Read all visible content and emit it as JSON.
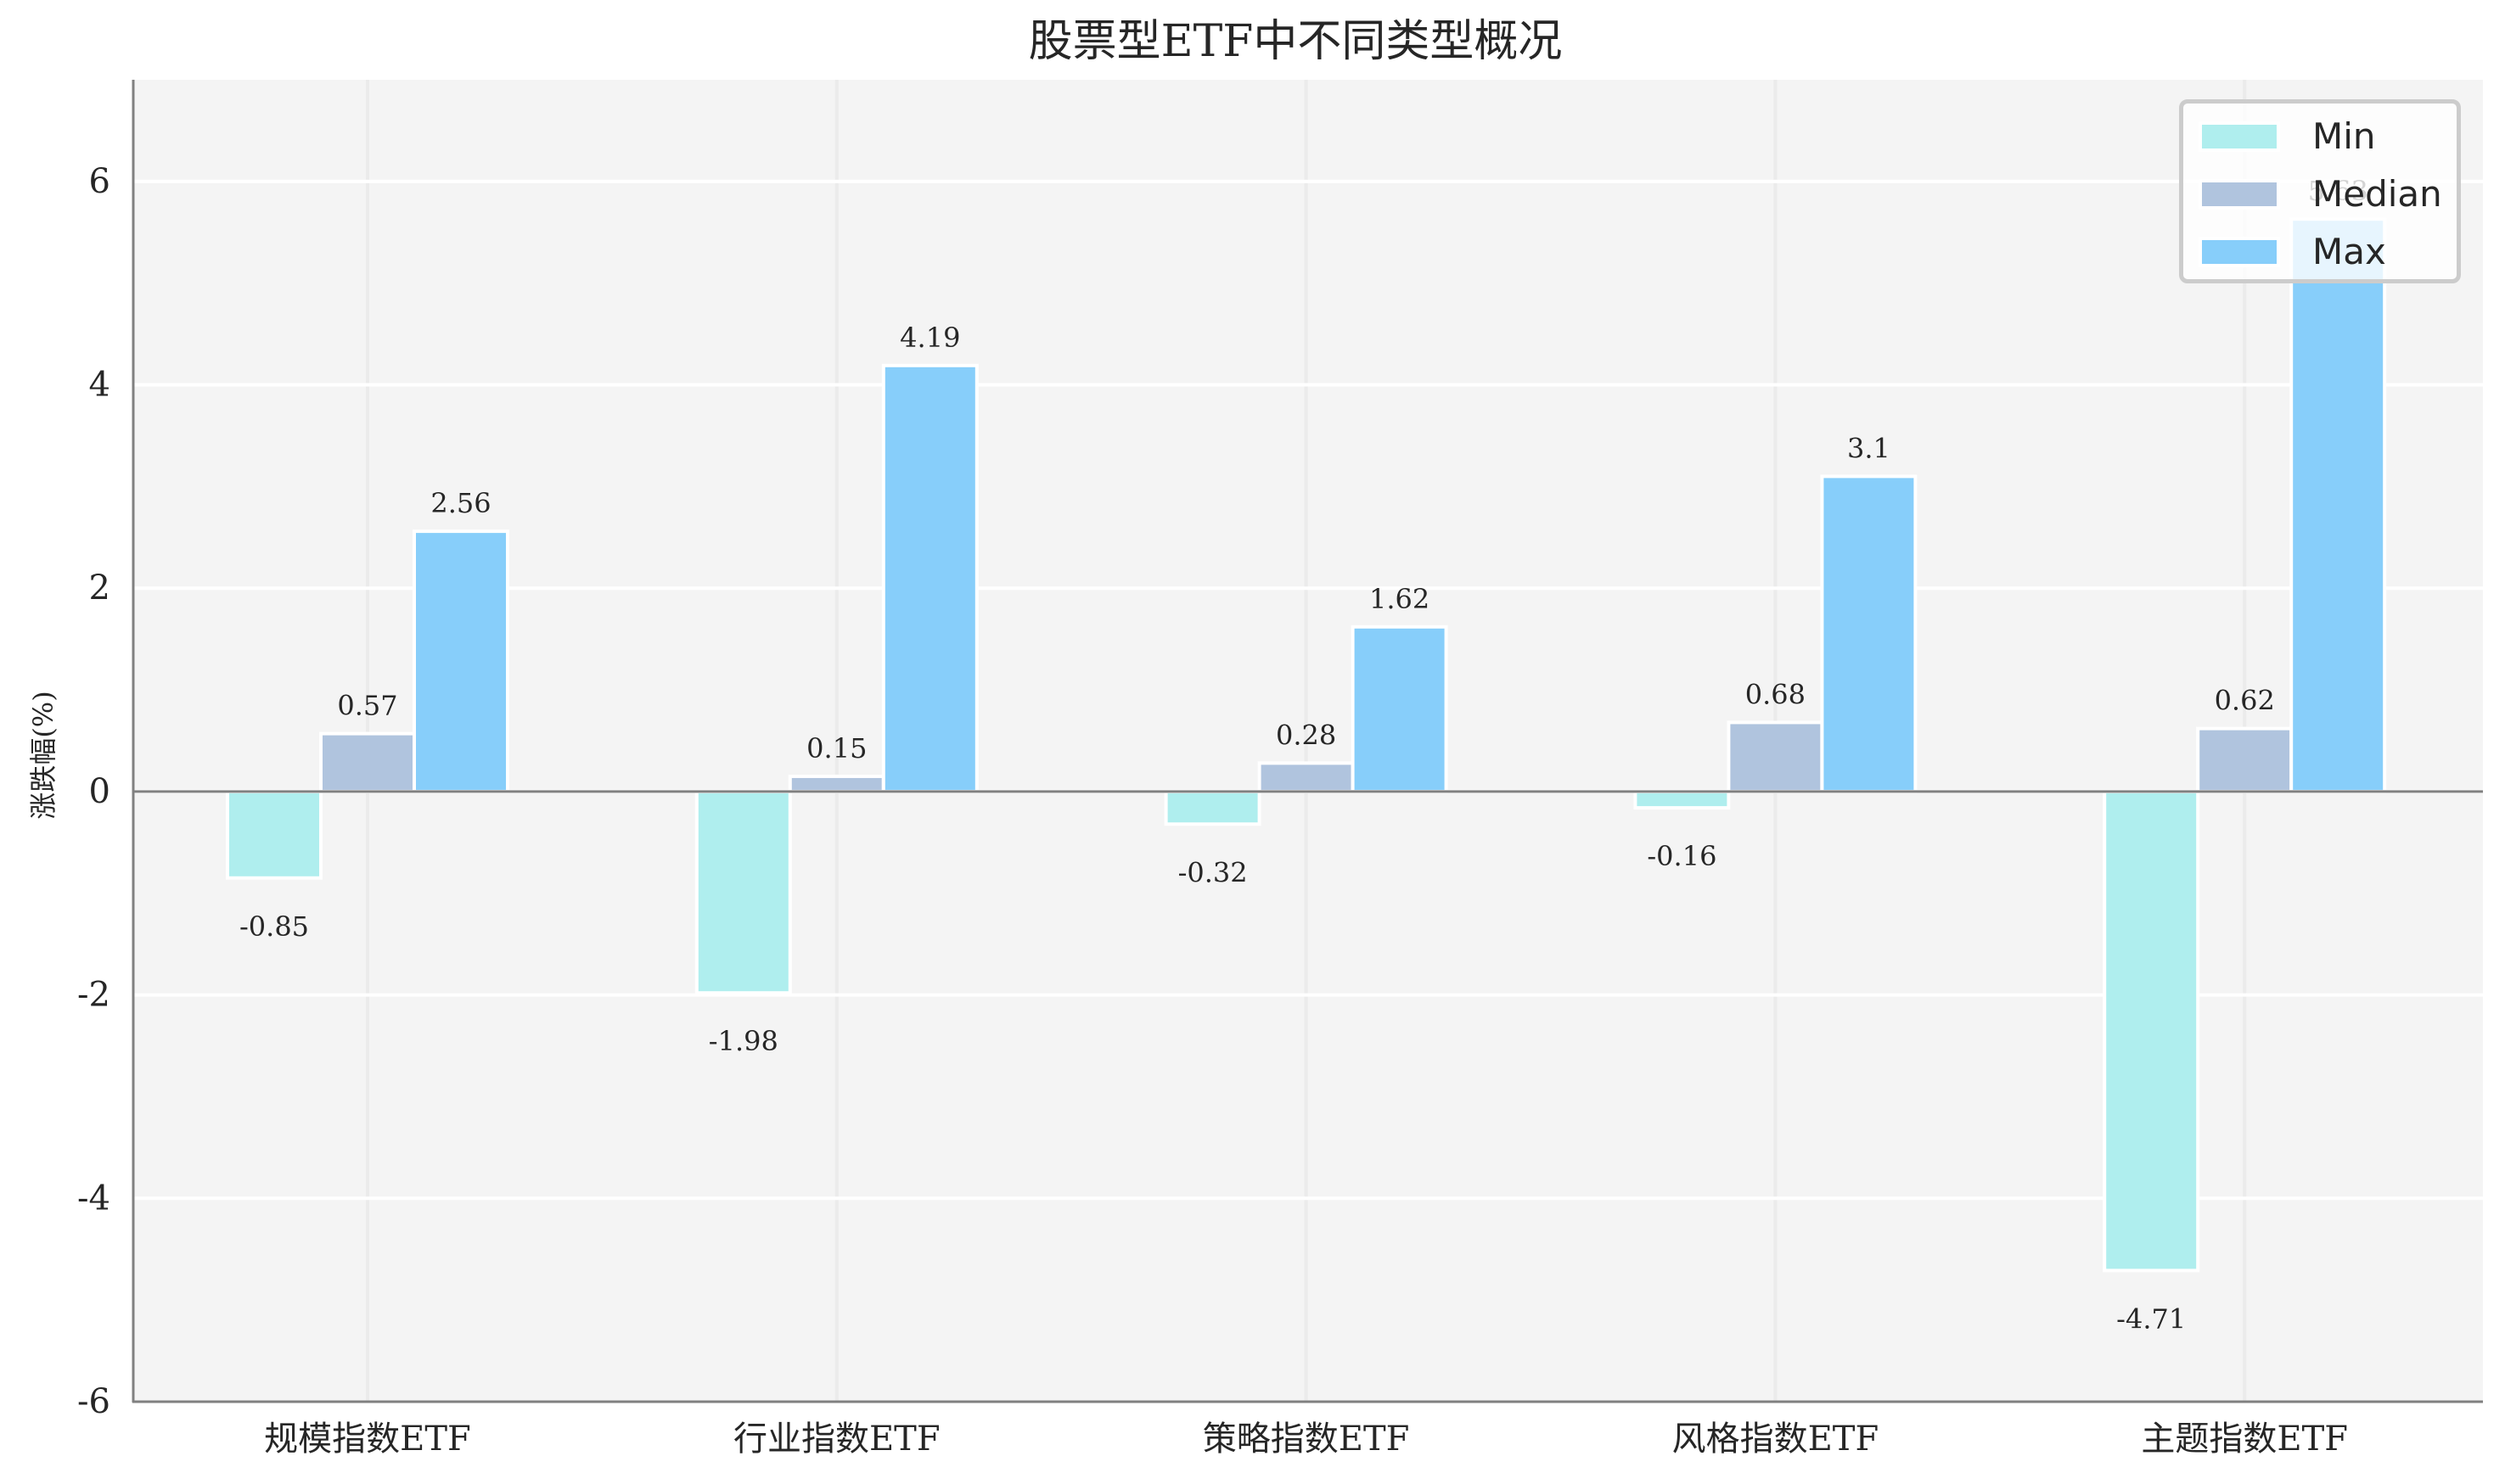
{
  "chart_data": {
    "type": "bar",
    "title": "股票型ETF中不同类型概况",
    "xlabel": "",
    "ylabel": "涨跌幅(%)",
    "categories": [
      "规模指数ETF",
      "行业指数ETF",
      "策略指数ETF",
      "风格指数ETF",
      "主题指数ETF"
    ],
    "series": [
      {
        "name": "Min",
        "color": "#AFEEEE",
        "values": [
          -0.85,
          -1.98,
          -0.32,
          -0.16,
          -4.71
        ]
      },
      {
        "name": "Median",
        "color": "#B0C4DE",
        "values": [
          0.57,
          0.15,
          0.28,
          0.68,
          0.62
        ]
      },
      {
        "name": "Max",
        "color": "#87CEFA",
        "values": [
          2.56,
          4.19,
          1.62,
          3.1,
          5.63
        ]
      }
    ],
    "ylim": [
      -6,
      7
    ],
    "yticks": [
      -6,
      -4,
      -2,
      0,
      2,
      4,
      6
    ],
    "grid": true,
    "legend_position": "upper right",
    "data_labels": true
  },
  "colors": {
    "plot_background": "#F4F4F4",
    "grid_horizontal": "#FFFFFF",
    "grid_vertical": "#EBEBEB",
    "axis": "#808080",
    "text": "#262626"
  },
  "legend": {
    "items": [
      {
        "label": "Min",
        "color": "#AFEEEE"
      },
      {
        "label": "Median",
        "color": "#B0C4DE"
      },
      {
        "label": "Max",
        "color": "#87CEFA"
      }
    ]
  }
}
